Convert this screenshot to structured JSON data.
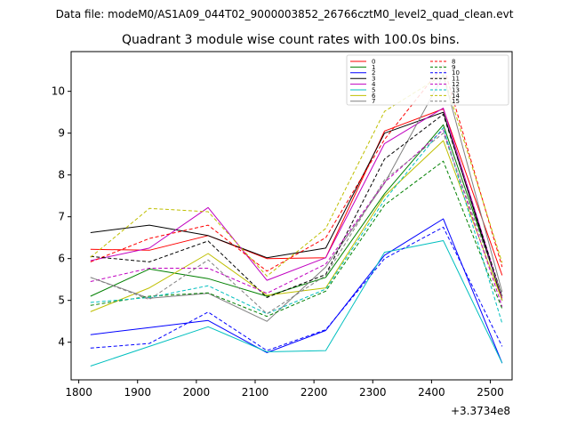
{
  "chart_data": {
    "type": "line",
    "suptitle": "Data file: modeM0/AS1A09_044T02_9000003852_26766cztM0_level2_quad_clean.evt",
    "title": "Quadrant 3 module wise count rates with 100.0s bins.",
    "xlabel": "",
    "ylabel": "",
    "x_offset_label": "+3.3734e8",
    "xlim": [
      1787,
      2537
    ],
    "ylim": [
      3.1,
      10.95
    ],
    "x_ticks": [
      1800,
      1900,
      2000,
      2100,
      2200,
      2300,
      2400,
      2500
    ],
    "y_ticks": [
      4,
      5,
      6,
      7,
      8,
      9,
      10
    ],
    "grid": false,
    "legend_placement": "top-right",
    "x": [
      1820,
      1920,
      2020,
      2120,
      2220,
      2320,
      2420,
      2520
    ],
    "series": [
      {
        "name": "0",
        "color": "#ff0000",
        "dash": "solid",
        "values": [
          6.22,
          6.2,
          6.55,
          6.0,
          6.02,
          9.05,
          9.58,
          5.6
        ]
      },
      {
        "name": "1",
        "color": "#008000",
        "dash": "solid",
        "values": [
          5.1,
          5.75,
          5.52,
          5.1,
          5.55,
          7.55,
          9.2,
          5.1
        ]
      },
      {
        "name": "2",
        "color": "#0000ff",
        "dash": "solid",
        "values": [
          4.18,
          4.35,
          4.52,
          3.75,
          4.28,
          6.08,
          6.95,
          3.5
        ]
      },
      {
        "name": "3",
        "color": "#000000",
        "dash": "solid",
        "values": [
          6.62,
          6.8,
          6.55,
          6.02,
          6.25,
          9.0,
          9.5,
          5.0
        ]
      },
      {
        "name": "4",
        "color": "#c000c0",
        "dash": "solid",
        "values": [
          5.95,
          6.25,
          7.22,
          5.48,
          6.02,
          8.75,
          9.6,
          5.05
        ]
      },
      {
        "name": "5",
        "color": "#00bfbf",
        "dash": "solid",
        "values": [
          3.43,
          3.9,
          4.37,
          3.77,
          3.8,
          6.15,
          6.43,
          3.5
        ]
      },
      {
        "name": "6",
        "color": "#bfbf00",
        "dash": "solid",
        "values": [
          4.73,
          5.3,
          6.12,
          5.12,
          5.3,
          7.5,
          8.82,
          5.0
        ]
      },
      {
        "name": "7",
        "color": "#808080",
        "dash": "solid",
        "values": [
          5.55,
          5.05,
          5.17,
          4.5,
          5.8,
          7.8,
          10.38,
          5.2
        ]
      },
      {
        "name": "8",
        "color": "#ff0000",
        "dash": "dashed",
        "values": [
          5.92,
          6.48,
          6.8,
          5.7,
          6.5,
          8.85,
          10.62,
          5.8
        ]
      },
      {
        "name": "9",
        "color": "#008000",
        "dash": "dashed",
        "values": [
          4.88,
          5.1,
          5.18,
          4.62,
          5.22,
          7.28,
          8.33,
          4.8
        ]
      },
      {
        "name": "10",
        "color": "#0000ff",
        "dash": "dashed",
        "values": [
          3.86,
          3.97,
          4.72,
          3.8,
          4.3,
          6.0,
          6.75,
          3.9
        ]
      },
      {
        "name": "11",
        "color": "#000000",
        "dash": "dashed",
        "values": [
          6.05,
          5.92,
          6.42,
          5.07,
          5.62,
          8.38,
          9.45,
          5.1
        ]
      },
      {
        "name": "12",
        "color": "#c000c0",
        "dash": "dashed",
        "values": [
          5.45,
          5.77,
          5.77,
          5.17,
          5.87,
          7.82,
          9.08,
          4.85
        ]
      },
      {
        "name": "13",
        "color": "#00bfbf",
        "dash": "dashed",
        "values": [
          4.95,
          5.07,
          5.35,
          4.68,
          5.27,
          7.4,
          9.13,
          4.45
        ]
      },
      {
        "name": "14",
        "color": "#bfbf00",
        "dash": "dashed",
        "values": [
          6.03,
          7.2,
          7.12,
          5.58,
          6.72,
          9.52,
          10.4,
          5.9
        ]
      },
      {
        "name": "15",
        "color": "#808080",
        "dash": "dashed",
        "values": [
          5.55,
          5.02,
          5.97,
          4.68,
          5.6,
          7.88,
          9.0,
          5.1
        ]
      }
    ]
  }
}
